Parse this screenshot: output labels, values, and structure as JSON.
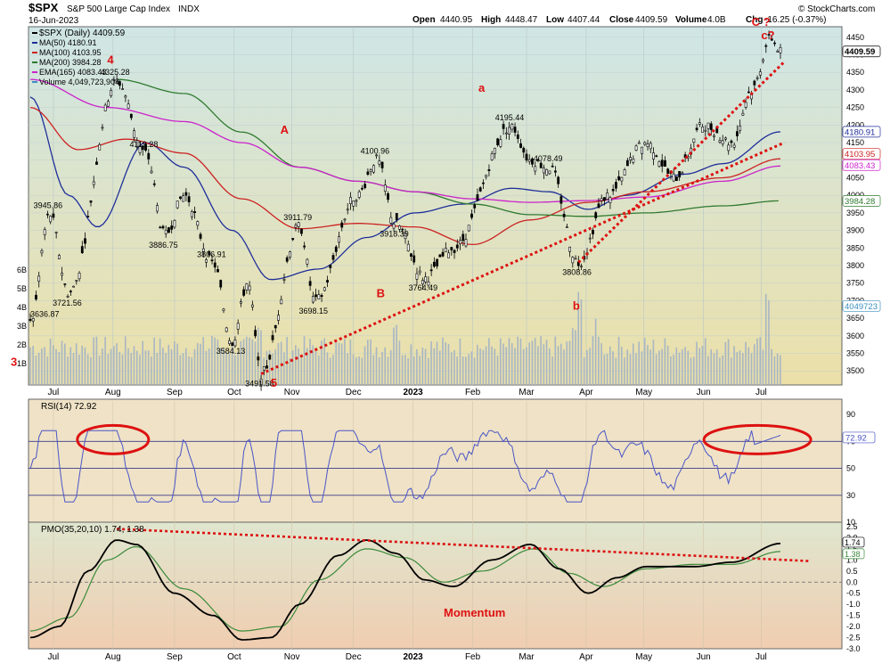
{
  "header": {
    "symbol": "$SPX",
    "name": "S&P 500 Large Cap Index",
    "exchange": "INDX",
    "date": "16-Jun-2023",
    "copyright": "© StockCharts.com",
    "open_label": "Open",
    "open": "4440.95",
    "high_label": "High",
    "high": "4448.47",
    "low_label": "Low",
    "low": "4407.44",
    "close_label": "Close",
    "close": "4409.59",
    "volume_label": "Volume",
    "volume": "4.0B",
    "chg_label": "Chg",
    "chg": "-16.25 (-0.37%)"
  },
  "legend": [
    {
      "text": "$SPX (Daily) 4409.59",
      "color": "#000000"
    },
    {
      "text": "MA(50) 4180.91",
      "color": "#1f2f9a"
    },
    {
      "text": "MA(100) 4103.95",
      "color": "#cc2222"
    },
    {
      "text": "MA(200) 3984.28",
      "color": "#2f7a2f"
    },
    {
      "text": "EMA(165) 4083.43",
      "color": "#cc22cc"
    },
    {
      "text": "Volume 4,049,723,904",
      "color": "#3a8fbf"
    }
  ],
  "colors": {
    "price_bg_top": "#cfe6e6",
    "price_bg_bottom": "#ece0a8",
    "rsi_bg": "#efe2c6",
    "pmo_bg_top": "#e0e6cf",
    "pmo_bg_bottom": "#f0cdb0",
    "ma50": "#1f2f9a",
    "ma100": "#cc2222",
    "ma200": "#2f7a2f",
    "ema165": "#cc22cc",
    "volume": "#a8b6c4",
    "annotation": "#dd1111",
    "rsi_line": "#4a55c8",
    "pmo_line": "#000000",
    "pmo_signal": "#3a8a3a"
  },
  "x_axis": {
    "labels": [
      "Jul",
      "Aug",
      "Sep",
      "Oct",
      "Nov",
      "Dec",
      "2023",
      "Feb",
      "Mar",
      "Apr",
      "May",
      "Jun",
      "Jul"
    ]
  },
  "chart_data": [
    {
      "type": "line",
      "title": "$SPX (Daily) 4409.59",
      "y_axis_side": "right",
      "ylim": [
        3460,
        4480
      ],
      "y_ticks": [
        3500,
        3550,
        3600,
        3650,
        3700,
        3750,
        3800,
        3850,
        3900,
        3950,
        4000,
        4050,
        4100,
        4150,
        4200,
        4250,
        4300,
        4350,
        4400,
        4450
      ],
      "volume_ticks": [
        "6B",
        "5B",
        "4B",
        "3B",
        "2B",
        "1B"
      ],
      "price_keypoints": [
        {
          "t": 0,
          "v": 3636.87
        },
        {
          "t": 10,
          "v": 3945.86
        },
        {
          "t": 20,
          "v": 3721.56
        },
        {
          "t": 45,
          "v": 4325.28
        },
        {
          "t": 60,
          "v": 4119.28
        },
        {
          "t": 70,
          "v": 3886.75
        },
        {
          "t": 80,
          "v": 4000
        },
        {
          "t": 95,
          "v": 3806.91
        },
        {
          "t": 105,
          "v": 3584.13
        },
        {
          "t": 113,
          "v": 3750
        },
        {
          "t": 120,
          "v": 3491.58
        },
        {
          "t": 140,
          "v": 3911.79
        },
        {
          "t": 148,
          "v": 3698.15
        },
        {
          "t": 170,
          "v": 4000
        },
        {
          "t": 180,
          "v": 4100.96
        },
        {
          "t": 190,
          "v": 3918.39
        },
        {
          "t": 205,
          "v": 3764.49
        },
        {
          "t": 220,
          "v": 3850
        },
        {
          "t": 250,
          "v": 4195.44
        },
        {
          "t": 260,
          "v": 4100
        },
        {
          "t": 270,
          "v": 4078.49
        },
        {
          "t": 285,
          "v": 3808.86
        },
        {
          "t": 300,
          "v": 4000
        },
        {
          "t": 320,
          "v": 4150
        },
        {
          "t": 335,
          "v": 4050
        },
        {
          "t": 350,
          "v": 4200
        },
        {
          "t": 365,
          "v": 4150
        },
        {
          "t": 375,
          "v": 4300
        },
        {
          "t": 385,
          "v": 4448.47
        },
        {
          "t": 390,
          "v": 4409.59
        }
      ],
      "price_labels": [
        {
          "text": "3636.87",
          "t": 0,
          "v": 3636.87,
          "pos": "above"
        },
        {
          "text": "3945.86",
          "t": 10,
          "v": 3945.86,
          "pos": "above"
        },
        {
          "text": "3721.56",
          "t": 20,
          "v": 3721.56,
          "pos": "below"
        },
        {
          "text": "4325.28",
          "t": 45,
          "v": 4325.28,
          "pos": "above"
        },
        {
          "text": "4119.28",
          "t": 60,
          "v": 4119.28,
          "pos": "above"
        },
        {
          "text": "3886.75",
          "t": 70,
          "v": 3886.75,
          "pos": "below"
        },
        {
          "text": "3806.91",
          "t": 95,
          "v": 3806.91,
          "pos": "above"
        },
        {
          "text": "3584.13",
          "t": 105,
          "v": 3584.13,
          "pos": "below"
        },
        {
          "text": "3491.58",
          "t": 120,
          "v": 3491.58,
          "pos": "below"
        },
        {
          "text": "3911.79",
          "t": 140,
          "v": 3911.79,
          "pos": "above"
        },
        {
          "text": "3698.15",
          "t": 148,
          "v": 3698.15,
          "pos": "below"
        },
        {
          "text": "4100.96",
          "t": 180,
          "v": 4100.96,
          "pos": "above"
        },
        {
          "text": "3918.39",
          "t": 190,
          "v": 3918.39,
          "pos": "below"
        },
        {
          "text": "3764.49",
          "t": 205,
          "v": 3764.49,
          "pos": "below"
        },
        {
          "text": "4195.44",
          "t": 250,
          "v": 4195.44,
          "pos": "above"
        },
        {
          "text": "4078.49",
          "t": 270,
          "v": 4078.49,
          "pos": "above"
        },
        {
          "text": "3808.86",
          "t": 285,
          "v": 3808.86,
          "pos": "below"
        }
      ],
      "ma_keypoints": {
        "ma50": [
          {
            "t": 0,
            "v": 4280
          },
          {
            "t": 20,
            "v": 4000
          },
          {
            "t": 35,
            "v": 3910
          },
          {
            "t": 60,
            "v": 4150
          },
          {
            "t": 80,
            "v": 4080
          },
          {
            "t": 105,
            "v": 3900
          },
          {
            "t": 125,
            "v": 3760
          },
          {
            "t": 150,
            "v": 3790
          },
          {
            "t": 175,
            "v": 3880
          },
          {
            "t": 200,
            "v": 3950
          },
          {
            "t": 225,
            "v": 3975
          },
          {
            "t": 250,
            "v": 4020
          },
          {
            "t": 270,
            "v": 4010
          },
          {
            "t": 290,
            "v": 3960
          },
          {
            "t": 310,
            "v": 4000
          },
          {
            "t": 340,
            "v": 4060
          },
          {
            "t": 360,
            "v": 4090
          },
          {
            "t": 390,
            "v": 4180.91
          }
        ],
        "ma100": [
          {
            "t": 0,
            "v": 4250
          },
          {
            "t": 25,
            "v": 4130
          },
          {
            "t": 50,
            "v": 4160
          },
          {
            "t": 80,
            "v": 4120
          },
          {
            "t": 110,
            "v": 3990
          },
          {
            "t": 140,
            "v": 3905
          },
          {
            "t": 170,
            "v": 3920
          },
          {
            "t": 200,
            "v": 3910
          },
          {
            "t": 230,
            "v": 3860
          },
          {
            "t": 260,
            "v": 3930
          },
          {
            "t": 290,
            "v": 3980
          },
          {
            "t": 320,
            "v": 4010
          },
          {
            "t": 360,
            "v": 4050
          },
          {
            "t": 390,
            "v": 4103.95
          }
        ],
        "ma200": [
          {
            "t": 45,
            "v": 4330
          },
          {
            "t": 80,
            "v": 4290
          },
          {
            "t": 110,
            "v": 4180
          },
          {
            "t": 140,
            "v": 4080
          },
          {
            "t": 170,
            "v": 4040
          },
          {
            "t": 200,
            "v": 4010
          },
          {
            "t": 230,
            "v": 3975
          },
          {
            "t": 260,
            "v": 3945
          },
          {
            "t": 290,
            "v": 3940
          },
          {
            "t": 320,
            "v": 3950
          },
          {
            "t": 360,
            "v": 3970
          },
          {
            "t": 390,
            "v": 3984.28
          }
        ],
        "ema165": [
          {
            "t": 0,
            "v": 4330
          },
          {
            "t": 40,
            "v": 4250
          },
          {
            "t": 80,
            "v": 4210
          },
          {
            "t": 110,
            "v": 4150
          },
          {
            "t": 140,
            "v": 4080
          },
          {
            "t": 170,
            "v": 4040
          },
          {
            "t": 200,
            "v": 4010
          },
          {
            "t": 230,
            "v": 3990
          },
          {
            "t": 260,
            "v": 3980
          },
          {
            "t": 290,
            "v": 3985
          },
          {
            "t": 320,
            "v": 3995
          },
          {
            "t": 360,
            "v": 4040
          },
          {
            "t": 390,
            "v": 4083.43
          }
        ]
      },
      "right_labels": [
        {
          "text": "4409.59",
          "v": 4409.59,
          "bg": "#ffffff",
          "color": "#000000"
        },
        {
          "text": "4180.91",
          "v": 4180.91,
          "bg": "#ffffff",
          "color": "#1f2f9a"
        },
        {
          "text": "4103.95",
          "v": 4118,
          "bg": "#ffffff",
          "color": "#cc2222"
        },
        {
          "text": "4083.43",
          "v": 4086,
          "bg": "#ffffff",
          "color": "#cc22cc"
        },
        {
          "text": "3984.28",
          "v": 3984.28,
          "bg": "#ffffff",
          "color": "#2f7a2f"
        },
        {
          "text": "4049723",
          "v": 3685,
          "bg": "#ffffff",
          "color": "#3a8fbf"
        }
      ],
      "trendlines": [
        {
          "from": {
            "t": 120,
            "v": 3491.58
          },
          "to": {
            "t": 392,
            "v": 4150
          }
        },
        {
          "from": {
            "t": 285,
            "v": 3808.86
          },
          "to": {
            "t": 392,
            "v": 4380
          }
        }
      ],
      "wave_labels": [
        {
          "text": "3",
          "t": -8,
          "v": 3515
        },
        {
          "text": "4",
          "t": 40,
          "v": 4375
        },
        {
          "text": "A",
          "t": 130,
          "v": 4175
        },
        {
          "text": "5",
          "t": 125,
          "v": 3455
        },
        {
          "text": "a",
          "t": 233,
          "v": 4295
        },
        {
          "text": "B",
          "t": 180,
          "v": 3710
        },
        {
          "text": "b",
          "t": 282,
          "v": 3675
        },
        {
          "text": "C ?",
          "t": 375,
          "v": 4482
        },
        {
          "text": "c?",
          "t": 380,
          "v": 4445
        }
      ]
    },
    {
      "type": "line",
      "title": "RSI(14) 72.92",
      "ylim": [
        10,
        100
      ],
      "y_ticks": [
        10,
        30,
        50,
        70,
        90
      ],
      "reference_lines": [
        30,
        50,
        70
      ],
      "current_value": 72.92,
      "highlights": [
        {
          "t": 43,
          "v": 70
        },
        {
          "t": 378,
          "v": 70
        }
      ]
    },
    {
      "type": "line",
      "title": "PMO(35,20,10) 1.74, 1.38",
      "ylim": [
        -3,
        2.7
      ],
      "y_ticks": [
        -3.0,
        -2.5,
        -2.0,
        -1.5,
        -1.0,
        -0.5,
        0.0,
        0.5,
        1.0,
        1.5,
        2.0,
        2.5
      ],
      "pmo_keypoints": [
        {
          "t": 0,
          "v": -2.5
        },
        {
          "t": 15,
          "v": -2.0
        },
        {
          "t": 30,
          "v": 0.5
        },
        {
          "t": 45,
          "v": 1.9
        },
        {
          "t": 55,
          "v": 1.7
        },
        {
          "t": 75,
          "v": -0.5
        },
        {
          "t": 95,
          "v": -1.5
        },
        {
          "t": 110,
          "v": -2.6
        },
        {
          "t": 125,
          "v": -2.5
        },
        {
          "t": 140,
          "v": -1.0
        },
        {
          "t": 160,
          "v": 1.2
        },
        {
          "t": 175,
          "v": 1.9
        },
        {
          "t": 190,
          "v": 1.3
        },
        {
          "t": 205,
          "v": 0.1
        },
        {
          "t": 220,
          "v": -0.2
        },
        {
          "t": 240,
          "v": 1.0
        },
        {
          "t": 260,
          "v": 1.7
        },
        {
          "t": 275,
          "v": 0.6
        },
        {
          "t": 290,
          "v": -0.5
        },
        {
          "t": 305,
          "v": 0.2
        },
        {
          "t": 320,
          "v": 0.7
        },
        {
          "t": 345,
          "v": 0.7
        },
        {
          "t": 365,
          "v": 0.9
        },
        {
          "t": 390,
          "v": 1.74
        }
      ],
      "signal_keypoints": [
        {
          "t": 0,
          "v": -2.2
        },
        {
          "t": 20,
          "v": -1.6
        },
        {
          "t": 40,
          "v": 1.0
        },
        {
          "t": 55,
          "v": 1.6
        },
        {
          "t": 80,
          "v": -0.3
        },
        {
          "t": 110,
          "v": -2.2
        },
        {
          "t": 130,
          "v": -2.0
        },
        {
          "t": 150,
          "v": 0.1
        },
        {
          "t": 175,
          "v": 1.5
        },
        {
          "t": 195,
          "v": 1.1
        },
        {
          "t": 215,
          "v": 0.0
        },
        {
          "t": 235,
          "v": 0.5
        },
        {
          "t": 262,
          "v": 1.5
        },
        {
          "t": 280,
          "v": 0.4
        },
        {
          "t": 298,
          "v": -0.2
        },
        {
          "t": 320,
          "v": 0.6
        },
        {
          "t": 345,
          "v": 0.8
        },
        {
          "t": 365,
          "v": 0.8
        },
        {
          "t": 390,
          "v": 1.38
        }
      ],
      "right_labels": [
        {
          "text": "1.74",
          "v": 1.74
        },
        {
          "text": "1.38",
          "v": 1.38
        }
      ],
      "trendline": {
        "from": {
          "t": 45,
          "v": 2.4
        },
        "to": {
          "t": 405,
          "v": 0.95
        }
      },
      "annotation": "Momentum"
    }
  ]
}
